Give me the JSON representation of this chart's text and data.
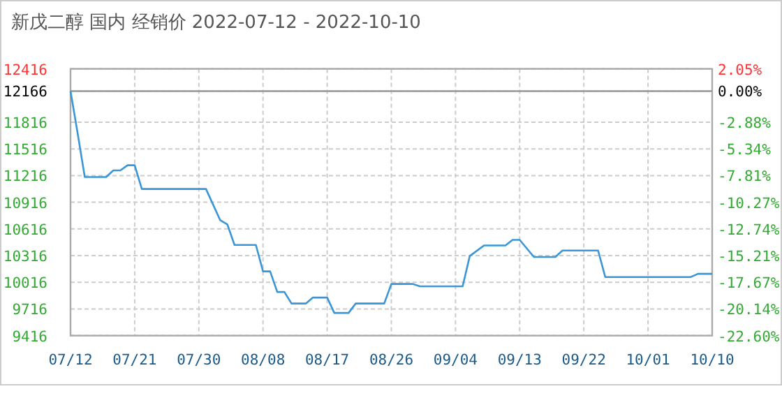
{
  "chart_data": {
    "type": "line",
    "title": "新戊二醇 国内 经销价 2022-07-12 - 2022-10-10",
    "x": [
      "2022-07-12",
      "2022-07-13",
      "2022-07-14",
      "2022-07-17",
      "2022-07-18",
      "2022-07-19",
      "2022-07-20",
      "2022-07-21",
      "2022-07-22",
      "2022-07-31",
      "2022-08-02",
      "2022-08-03",
      "2022-08-04",
      "2022-08-07",
      "2022-08-08",
      "2022-08-09",
      "2022-08-10",
      "2022-08-11",
      "2022-08-12",
      "2022-08-14",
      "2022-08-15",
      "2022-08-17",
      "2022-08-18",
      "2022-08-20",
      "2022-08-21",
      "2022-08-25",
      "2022-08-26",
      "2022-08-29",
      "2022-08-30",
      "2022-09-05",
      "2022-09-06",
      "2022-09-08",
      "2022-09-11",
      "2022-09-12",
      "2022-09-13",
      "2022-09-15",
      "2022-09-18",
      "2022-09-19",
      "2022-09-24",
      "2022-09-25",
      "2022-10-07",
      "2022-10-08",
      "2022-10-10"
    ],
    "series": [
      {
        "color": "#3a96d6",
        "values": [
          12166,
          11690,
          11200,
          11200,
          11274,
          11274,
          11332,
          11332,
          11065,
          11065,
          10713,
          10666,
          10436,
          10436,
          10138,
          10138,
          9907,
          9907,
          9777,
          9777,
          9844,
          9844,
          9671,
          9671,
          9777,
          9777,
          9997,
          9997,
          9970,
          9970,
          10311,
          10430,
          10430,
          10493,
          10493,
          10300,
          10300,
          10373,
          10373,
          10075,
          10075,
          10111,
          10111
        ]
      }
    ],
    "xlim": [
      "2022-07-12",
      "2022-10-10"
    ],
    "xticks": [
      {
        "value": "2022-07-12",
        "label": "07/12"
      },
      {
        "value": "2022-07-21",
        "label": "07/21"
      },
      {
        "value": "2022-07-30",
        "label": "07/30"
      },
      {
        "value": "2022-08-08",
        "label": "08/08"
      },
      {
        "value": "2022-08-17",
        "label": "08/17"
      },
      {
        "value": "2022-08-26",
        "label": "08/26"
      },
      {
        "value": "2022-09-04",
        "label": "09/04"
      },
      {
        "value": "2022-09-13",
        "label": "09/13"
      },
      {
        "value": "2022-09-22",
        "label": "09/22"
      },
      {
        "value": "2022-10-01",
        "label": "10/01"
      },
      {
        "value": "2022-10-10",
        "label": "10/10"
      }
    ],
    "ylim": [
      9416,
      12416
    ],
    "yticks": [
      12416,
      12166,
      11816,
      11516,
      11216,
      10916,
      10616,
      10316,
      10016,
      9716,
      9416
    ],
    "y2lim": [
      -22.6,
      2.05
    ],
    "y2ticks": [
      {
        "value": 2.05,
        "label": "2.05%"
      },
      {
        "value": 0,
        "label": "0.00%"
      },
      {
        "value": -2.88,
        "label": "-2.88%"
      },
      {
        "value": -5.34,
        "label": "-5.34%"
      },
      {
        "value": -7.81,
        "label": "-7.81%"
      },
      {
        "value": -10.27,
        "label": "-10.27%"
      },
      {
        "value": -12.74,
        "label": "-12.74%"
      },
      {
        "value": -15.21,
        "label": "-15.21%"
      },
      {
        "value": -17.67,
        "label": "-17.67%"
      },
      {
        "value": -20.14,
        "label": "-20.14%"
      },
      {
        "value": -22.6,
        "label": "-22.60%"
      }
    ],
    "ref_lines": [
      {
        "axis": "y",
        "value": 12166,
        "color": "#999999"
      }
    ],
    "grid": true
  }
}
